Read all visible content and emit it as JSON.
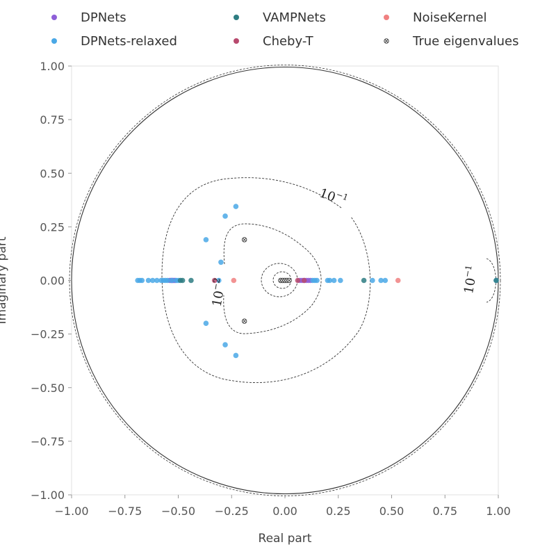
{
  "chart_data": {
    "type": "scatter",
    "xlabel": "Real part",
    "ylabel": "Imaginary part",
    "xlim": [
      -1.0,
      1.0
    ],
    "ylim": [
      -1.0,
      1.0
    ],
    "xticks": [
      "−1.00",
      "−0.75",
      "−0.50",
      "−0.25",
      "0.00",
      "0.25",
      "0.50",
      "0.75",
      "1.00"
    ],
    "yticks": [
      "−1.00",
      "−0.75",
      "−0.50",
      "−0.25",
      "0.00",
      "0.25",
      "0.50",
      "0.75",
      "1.00"
    ],
    "xtick_values": [
      -1.0,
      -0.75,
      -0.5,
      -0.25,
      0.0,
      0.25,
      0.5,
      0.75,
      1.0
    ],
    "ytick_values": [
      -1.0,
      -0.75,
      -0.5,
      -0.25,
      0.0,
      0.25,
      0.5,
      0.75,
      1.0
    ],
    "grid": false,
    "legend_position": "top",
    "unit_circle_radius": 1.0,
    "contour_labels": [
      {
        "base": "10",
        "exp": "−1",
        "x": 0.22,
        "y": 0.37
      },
      {
        "base": "10",
        "exp": "−2",
        "x": -0.29,
        "y": -0.06
      },
      {
        "base": "10",
        "exp": "−1",
        "x": 0.89,
        "y": 0.0
      }
    ],
    "series": [
      {
        "name": "DPNets",
        "color": "#8e5fd8",
        "marker": "circle",
        "points": [
          [
            -0.54,
            0
          ],
          [
            -0.535,
            0
          ],
          [
            -0.53,
            0
          ],
          [
            -0.525,
            0
          ],
          [
            -0.52,
            0
          ],
          [
            -0.515,
            0
          ],
          [
            0.07,
            0
          ],
          [
            0.08,
            0
          ],
          [
            0.09,
            0
          ],
          [
            0.1,
            0
          ],
          [
            0.11,
            0
          ],
          [
            0.12,
            0
          ]
        ]
      },
      {
        "name": "DPNets-relaxed",
        "color": "#4aa8e6",
        "marker": "circle",
        "points": [
          [
            -0.69,
            0
          ],
          [
            -0.68,
            0
          ],
          [
            -0.67,
            0
          ],
          [
            -0.64,
            0
          ],
          [
            -0.62,
            0
          ],
          [
            -0.6,
            0
          ],
          [
            -0.58,
            0
          ],
          [
            -0.57,
            0
          ],
          [
            -0.56,
            0
          ],
          [
            -0.55,
            0
          ],
          [
            -0.53,
            0
          ],
          [
            -0.51,
            0
          ],
          [
            -0.5,
            0
          ],
          [
            -0.31,
            0
          ],
          [
            -0.3,
            0.085
          ],
          [
            -0.37,
            0.19
          ],
          [
            -0.37,
            -0.2
          ],
          [
            -0.28,
            0.3
          ],
          [
            -0.28,
            -0.3
          ],
          [
            -0.23,
            0.345
          ],
          [
            -0.23,
            -0.35
          ],
          [
            0.13,
            0
          ],
          [
            0.14,
            0
          ],
          [
            0.15,
            0
          ],
          [
            0.2,
            0
          ],
          [
            0.21,
            0
          ],
          [
            0.23,
            0
          ],
          [
            0.26,
            0
          ],
          [
            0.41,
            0
          ],
          [
            0.45,
            0
          ],
          [
            0.47,
            0
          ],
          [
            0.99,
            0
          ]
        ]
      },
      {
        "name": "VAMPNets",
        "color": "#2e7d82",
        "marker": "circle",
        "points": [
          [
            -0.49,
            0
          ],
          [
            -0.48,
            0
          ],
          [
            -0.44,
            0
          ],
          [
            0.37,
            0
          ],
          [
            0.99,
            0
          ]
        ]
      },
      {
        "name": "Cheby-T",
        "color": "#b84a6e",
        "marker": "circle",
        "points": [
          [
            -0.33,
            0
          ],
          [
            0.06,
            0
          ],
          [
            0.09,
            0
          ]
        ]
      },
      {
        "name": "NoiseKernel",
        "color": "#f08080",
        "marker": "circle",
        "points": [
          [
            -0.24,
            0
          ],
          [
            0.53,
            0
          ]
        ]
      },
      {
        "name": "True eigenvalues",
        "color": "#444444",
        "marker": "x-circle",
        "points": [
          [
            -0.19,
            0.19
          ],
          [
            -0.19,
            -0.19
          ],
          [
            -0.02,
            0
          ],
          [
            -0.01,
            0
          ],
          [
            0.0,
            0
          ],
          [
            0.01,
            0
          ],
          [
            0.02,
            0
          ]
        ]
      }
    ]
  }
}
